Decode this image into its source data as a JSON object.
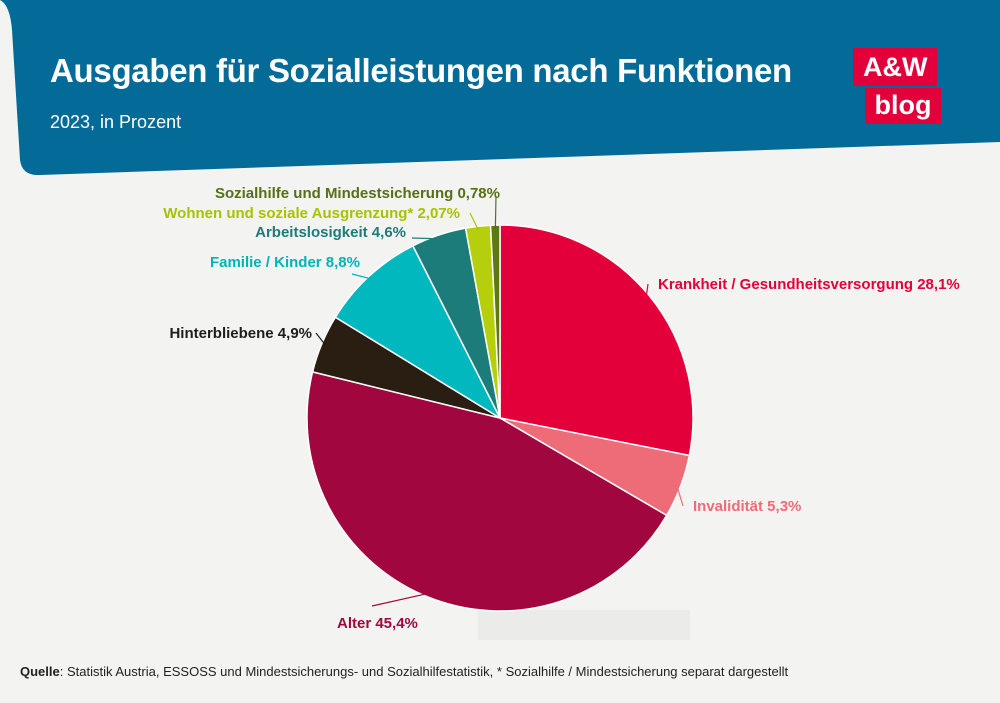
{
  "header": {
    "title": "Ausgaben für Sozialleistungen nach Funktionen",
    "subtitle": "2023, in Prozent",
    "logo_top": "A&W",
    "logo_bottom": "blog",
    "bg_color": "#046b99"
  },
  "chart_data": {
    "type": "pie",
    "title": "Ausgaben für Sozialleistungen nach Funktionen",
    "subtitle": "2023, in Prozent",
    "start": "12 o'clock, clockwise",
    "slices": [
      {
        "label": "Krankheit / Gesundheitsversorgung 28,1%",
        "value": 28.1,
        "color": "#e3003a",
        "text_color": "#e3003a"
      },
      {
        "label": "Invalidität 5,3%",
        "value": 5.3,
        "color": "#ee6b78",
        "text_color": "#ee6b78"
      },
      {
        "label": "Alter 45,4%",
        "value": 45.4,
        "color": "#a1073e",
        "text_color": "#a1073e"
      },
      {
        "label": "Hinterbliebene 4,9%",
        "value": 4.9,
        "color": "#2a1d12",
        "text_color": "#1e1e1e"
      },
      {
        "label": "Familie / Kinder 8,8%",
        "value": 8.8,
        "color": "#00b8bd",
        "text_color": "#00b3b8"
      },
      {
        "label": "Arbeitslosigkeit 4,6%",
        "value": 4.6,
        "color": "#1c7c7a",
        "text_color": "#1c7c7a"
      },
      {
        "label": "Wohnen und soziale Ausgrenzung* 2,07%",
        "value": 2.07,
        "color": "#b5cf0c",
        "text_color": "#a9c200"
      },
      {
        "label": "Sozialhilfe und Mindestsicherung 0,78%",
        "value": 0.78,
        "color": "#5c7a12",
        "text_color": "#557015"
      }
    ]
  },
  "source": {
    "label": "Quelle",
    "text": ": Statistik Austria, ESSOSS und Mindestsicherungs- und Sozialhilfestatistik, * Sozialhilfe / Mindestsicherung separat dargestellt"
  }
}
